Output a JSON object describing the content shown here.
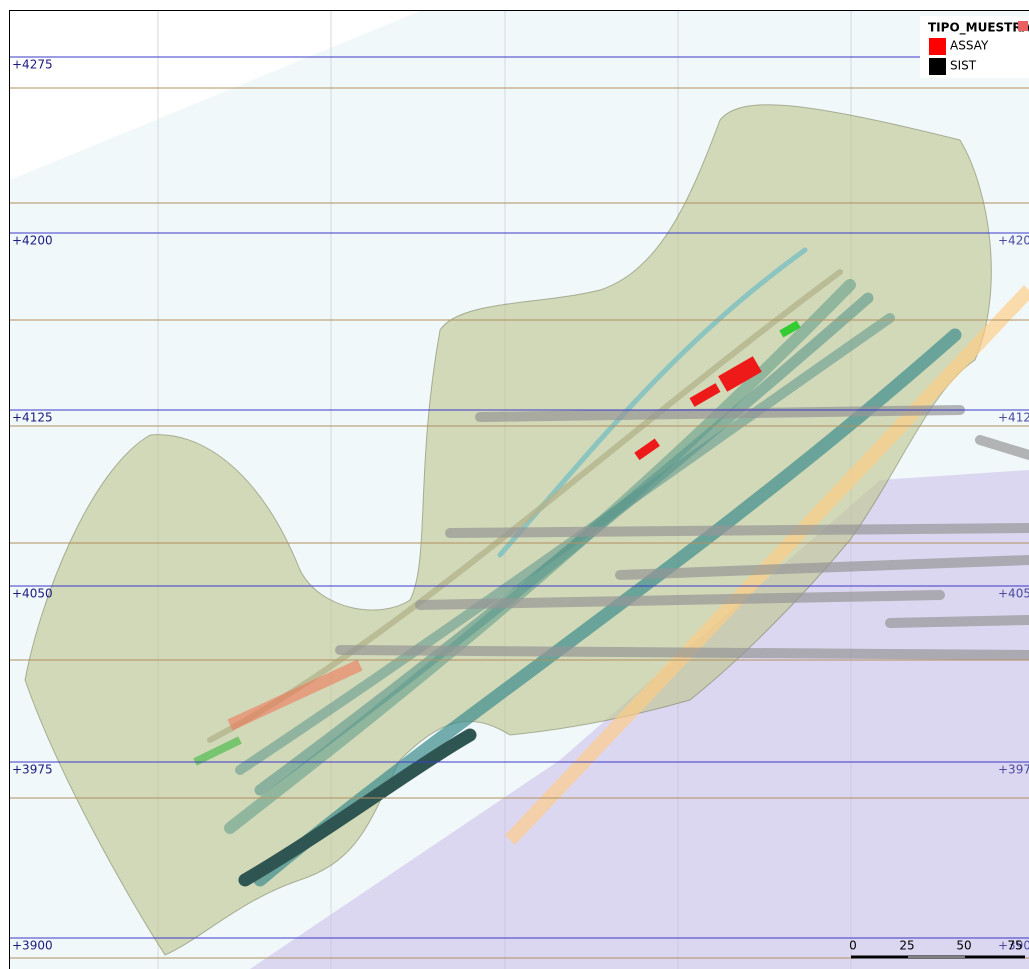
{
  "elevation_labels": [
    "+4275",
    "+4200",
    "+4125",
    "+4050",
    "+3975",
    "+3900"
  ],
  "legend": {
    "title": "TIPO_MUESTRA",
    "items": [
      {
        "label": "ASSAY",
        "color": "#ff0000"
      },
      {
        "label": "SIST",
        "color": "#000000"
      }
    ]
  },
  "scale_bar": {
    "labels": [
      "0",
      "25",
      "50",
      "75"
    ]
  }
}
